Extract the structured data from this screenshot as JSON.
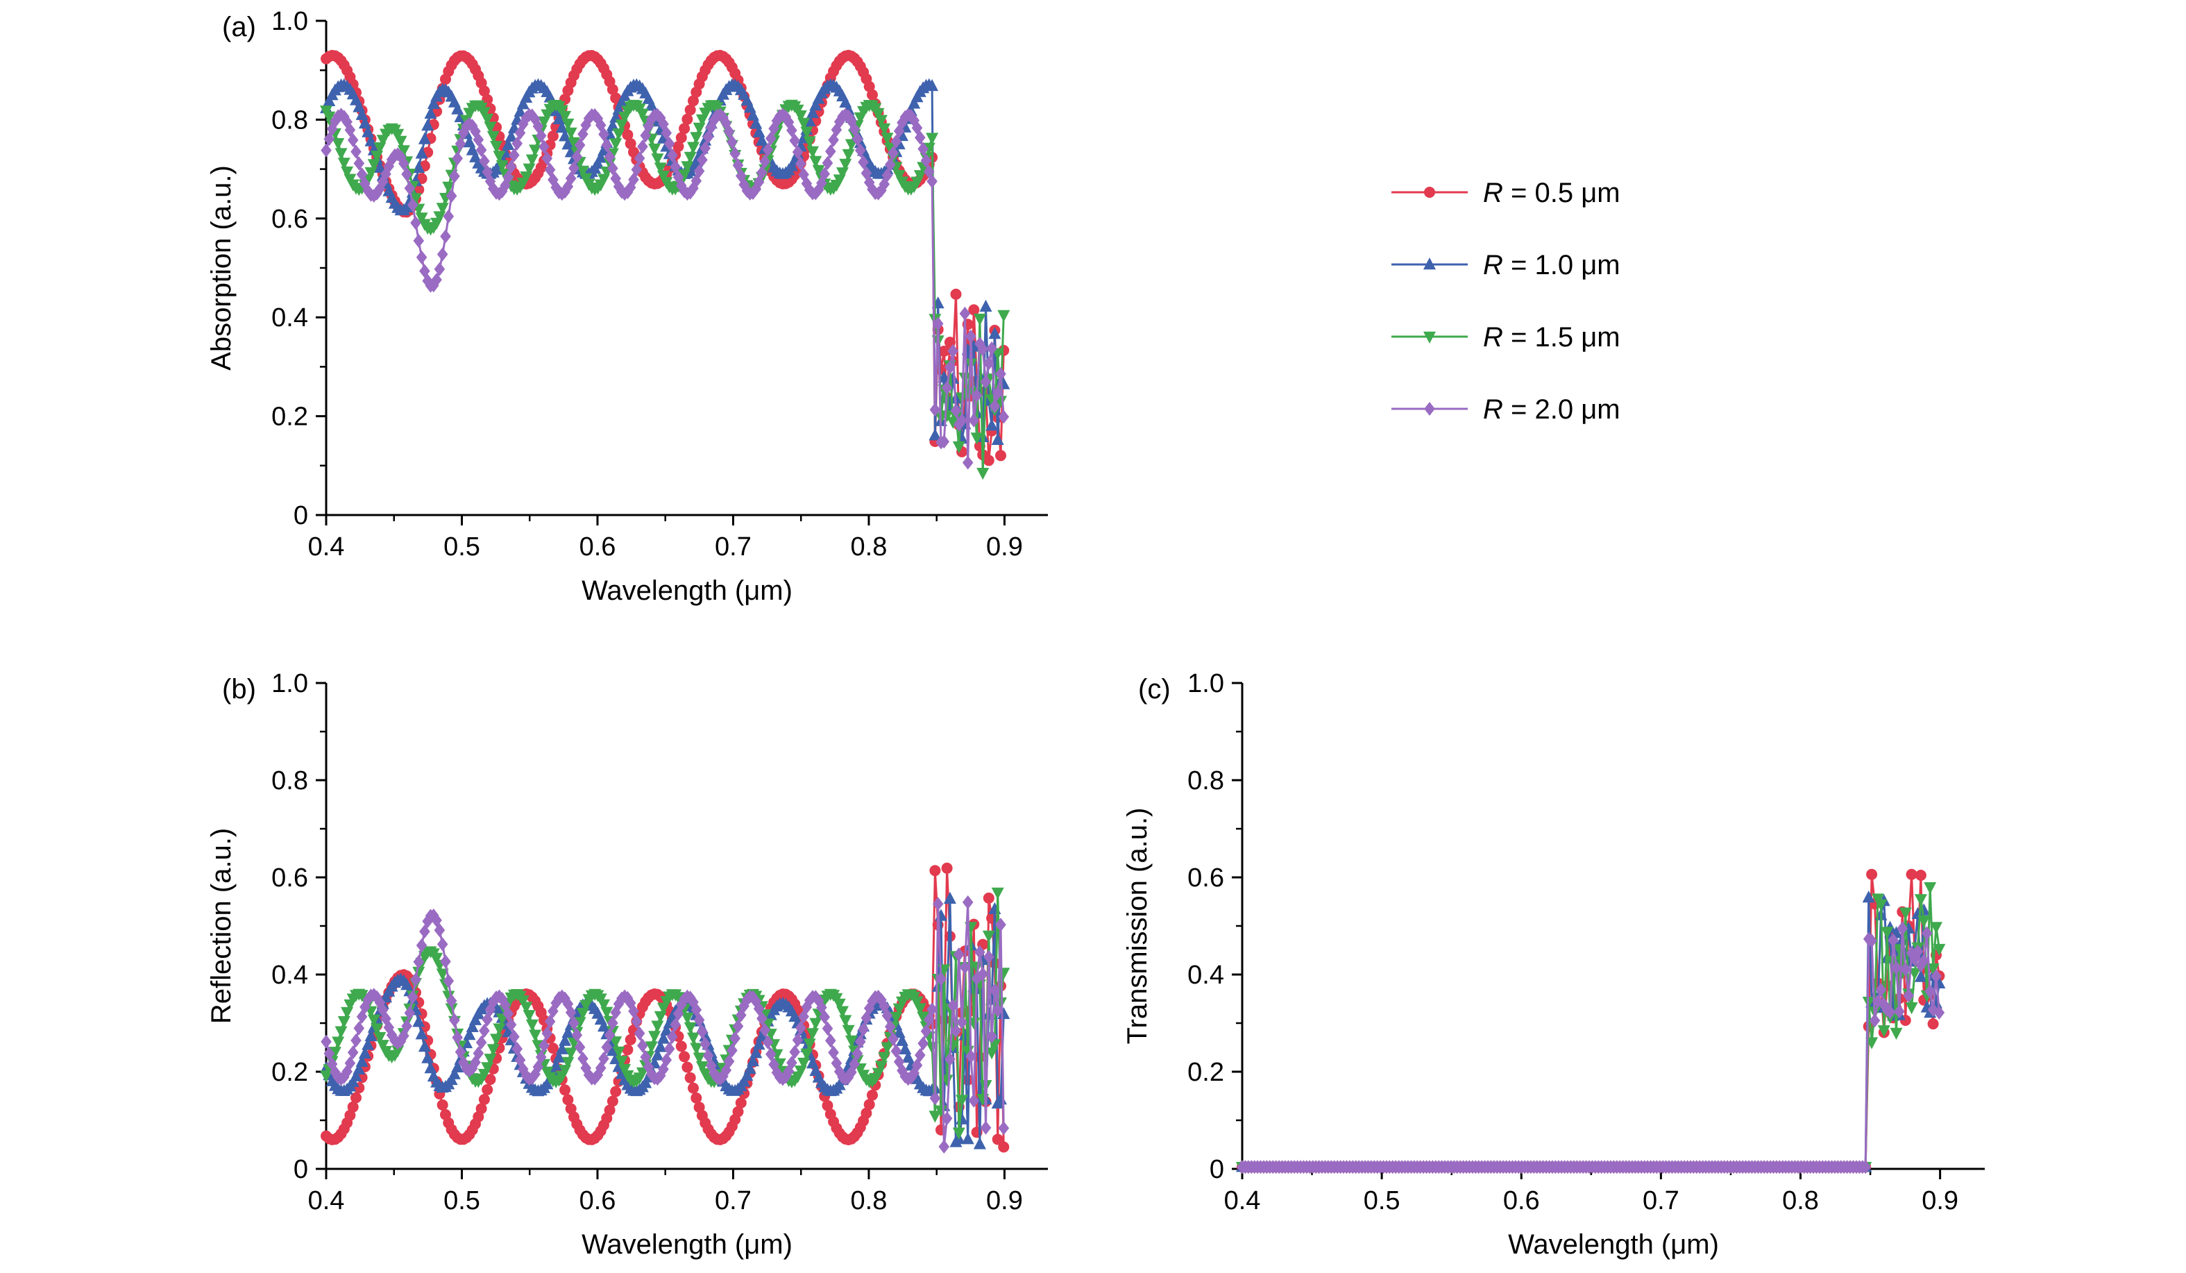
{
  "figure": {
    "background": "#ffffff"
  },
  "legend": {
    "items": [
      {
        "r_symbol": "R",
        "label": " = 0.5 μm",
        "color": "#e23a4e",
        "marker": "circle"
      },
      {
        "r_symbol": "R",
        "label": " = 1.0 μm",
        "color": "#3e62ad",
        "marker": "triangle-up"
      },
      {
        "r_symbol": "R",
        "label": " = 1.5 μm",
        "color": "#3fa94d",
        "marker": "triangle-down"
      },
      {
        "r_symbol": "R",
        "label": " = 2.0 μm",
        "color": "#9a6bc2",
        "marker": "diamond"
      }
    ]
  },
  "chart_data": [
    {
      "id": "a",
      "type": "line",
      "panel_tag": "(a)",
      "xlabel": "Wavelength (μm)",
      "ylabel": "Absorption (a.u.)",
      "xlim": [
        0.4,
        0.932
      ],
      "ylim": [
        0,
        1.0
      ],
      "xticks": [
        0.4,
        0.5,
        0.6,
        0.7,
        0.8,
        0.9
      ],
      "xtick_labels": [
        "0.4",
        "0.5",
        "0.6",
        "0.7",
        "0.8",
        "0.9"
      ],
      "xticks_minor": [
        0.45,
        0.55,
        0.65,
        0.75,
        0.85
      ],
      "yticks": [
        0,
        0.2,
        0.4,
        0.6,
        0.8,
        1.0
      ],
      "ytick_labels": [
        "0",
        "0.2",
        "0.4",
        "0.6",
        "0.8",
        "1.0"
      ],
      "yticks_minor": [
        0.1,
        0.3,
        0.5,
        0.7,
        0.9
      ],
      "description": "Oscillatory absorption 0.6-0.97 from 0.4 to 0.85 um, sharp drop to noisy 0.1-0.46 band from 0.85 to 0.9 um",
      "series": [
        {
          "name": "R = 0.5 μm",
          "color": "#e23a4e",
          "marker": "circle",
          "seed": 101,
          "start": 0.4,
          "end": 0.9,
          "step": 0.0022,
          "cutoff": 0.8485,
          "osc": {
            "base": 0.8,
            "amp": 0.13,
            "period": 0.095,
            "phase": 1.25,
            "dipC": 0.465,
            "dipD": -0.08,
            "dipW": 0.016
          },
          "noise": {
            "min": 0.1,
            "max": 0.46
          }
        },
        {
          "name": "R = 1.0 μm",
          "color": "#3e62ad",
          "marker": "triangle-up",
          "seed": 202,
          "start": 0.4,
          "end": 0.9,
          "step": 0.0022,
          "cutoff": 0.8485,
          "osc": {
            "base": 0.78,
            "amp": 0.09,
            "period": 0.072,
            "phase": 0.5,
            "dipC": 0.462,
            "dipD": -0.11,
            "dipW": 0.015
          },
          "noise": {
            "min": 0.12,
            "max": 0.44
          }
        },
        {
          "name": "R = 1.5 μm",
          "color": "#3fa94d",
          "marker": "triangle-down",
          "seed": 303,
          "start": 0.4,
          "end": 0.9,
          "step": 0.0022,
          "cutoff": 0.8485,
          "osc": {
            "base": 0.745,
            "amp": 0.085,
            "period": 0.058,
            "phase": 2.1,
            "dipC": 0.468,
            "dipD": -0.12,
            "dipW": 0.018
          },
          "noise": {
            "min": 0.08,
            "max": 0.42
          }
        },
        {
          "name": "R = 2.0 μm",
          "color": "#9a6bc2",
          "marker": "diamond",
          "seed": 404,
          "start": 0.4,
          "end": 0.9,
          "step": 0.0022,
          "cutoff": 0.8485,
          "osc": {
            "base": 0.73,
            "amp": 0.08,
            "period": 0.0465,
            "phase": 0.1,
            "dipC": 0.474,
            "dipD": -0.2,
            "dipW": 0.02
          },
          "noise": {
            "min": 0.1,
            "max": 0.42
          }
        }
      ]
    },
    {
      "id": "b",
      "type": "line",
      "panel_tag": "(b)",
      "xlabel": "Wavelength (μm)",
      "ylabel": "Reflection (a.u.)",
      "xlim": [
        0.4,
        0.932
      ],
      "ylim": [
        0,
        1.0
      ],
      "xticks": [
        0.4,
        0.5,
        0.6,
        0.7,
        0.8,
        0.9
      ],
      "xtick_labels": [
        "0.4",
        "0.5",
        "0.6",
        "0.7",
        "0.8",
        "0.9"
      ],
      "xticks_minor": [
        0.45,
        0.55,
        0.65,
        0.75,
        0.85
      ],
      "yticks": [
        0,
        0.2,
        0.4,
        0.6,
        0.8,
        1.0
      ],
      "ytick_labels": [
        "0",
        "0.2",
        "0.4",
        "0.6",
        "0.8",
        "1.0"
      ],
      "yticks_minor": [
        0.1,
        0.3,
        0.5,
        0.7,
        0.9
      ],
      "description": "Oscillatory reflection 0.03-0.52 from 0.4 to 0.85 um, noisy spikes 0-0.65 from 0.85 to 0.9 um",
      "series": [
        {
          "name": "R = 0.5 μm",
          "color": "#e23a4e",
          "marker": "circle",
          "seed": 111,
          "start": 0.4,
          "end": 0.9,
          "step": 0.0022,
          "cutoff": 0.8485,
          "osc": {
            "base": 0.21,
            "amp": 0.15,
            "period": 0.095,
            "phase": 4.39,
            "dipC": 0.465,
            "dipD": 0.06,
            "dipW": 0.016
          },
          "noise": {
            "min": 0.02,
            "max": 0.62
          }
        },
        {
          "name": "R = 1.0 μm",
          "color": "#3e62ad",
          "marker": "triangle-up",
          "seed": 222,
          "start": 0.4,
          "end": 0.9,
          "step": 0.0022,
          "cutoff": 0.8485,
          "osc": {
            "base": 0.25,
            "amp": 0.09,
            "period": 0.072,
            "phase": 3.64,
            "dipC": 0.462,
            "dipD": 0.08,
            "dipW": 0.015
          },
          "noise": {
            "min": 0.05,
            "max": 0.58
          }
        },
        {
          "name": "R = 1.5 μm",
          "color": "#3fa94d",
          "marker": "triangle-down",
          "seed": 333,
          "start": 0.4,
          "end": 0.9,
          "step": 0.0022,
          "cutoff": 0.8485,
          "osc": {
            "base": 0.27,
            "amp": 0.09,
            "period": 0.058,
            "phase": 5.24,
            "dipC": 0.468,
            "dipD": 0.13,
            "dipW": 0.018
          },
          "noise": {
            "min": 0.05,
            "max": 0.62
          }
        },
        {
          "name": "R = 2.0 μm",
          "color": "#9a6bc2",
          "marker": "diamond",
          "seed": 444,
          "start": 0.4,
          "end": 0.9,
          "step": 0.0022,
          "cutoff": 0.8485,
          "osc": {
            "base": 0.27,
            "amp": 0.085,
            "period": 0.0465,
            "phase": 3.24,
            "dipC": 0.474,
            "dipD": 0.18,
            "dipW": 0.02
          },
          "noise": {
            "min": 0.03,
            "max": 0.55
          }
        }
      ]
    },
    {
      "id": "c",
      "type": "line",
      "panel_tag": "(c)",
      "xlabel": "Wavelength (μm)",
      "ylabel": "Transmission (a.u.)",
      "xlim": [
        0.4,
        0.932
      ],
      "ylim": [
        0,
        1.0
      ],
      "xticks": [
        0.4,
        0.5,
        0.6,
        0.7,
        0.8,
        0.9
      ],
      "xtick_labels": [
        "0.4",
        "0.5",
        "0.6",
        "0.7",
        "0.8",
        "0.9"
      ],
      "xticks_minor": [
        0.45,
        0.55,
        0.65,
        0.75,
        0.85
      ],
      "yticks": [
        0,
        0.2,
        0.4,
        0.6,
        0.8,
        1.0
      ],
      "ytick_labels": [
        "0",
        "0.2",
        "0.4",
        "0.6",
        "0.8",
        "1.0"
      ],
      "yticks_minor": [
        0.1,
        0.3,
        0.5,
        0.7,
        0.9
      ],
      "description": "Transmission is zero from 0.4 to 0.85 um, then a noisy cluster 0.26-0.62 from 0.85 to 0.9 um",
      "series": [
        {
          "name": "R = 0.5 μm",
          "color": "#e23a4e",
          "marker": "circle",
          "seed": 121,
          "start": 0.4,
          "end": 0.9,
          "step": 0.0022,
          "cutoff": 0.8485,
          "osc": {
            "base": 0.004,
            "amp": 0.0,
            "period": 1.0,
            "phase": 0.0,
            "dipC": 0.5,
            "dipD": 0.0,
            "dipW": 0.02
          },
          "noise": {
            "min": 0.28,
            "max": 0.62
          }
        },
        {
          "name": "R = 1.0 μm",
          "color": "#3e62ad",
          "marker": "triangle-up",
          "seed": 232,
          "start": 0.4,
          "end": 0.9,
          "step": 0.0022,
          "cutoff": 0.8485,
          "osc": {
            "base": 0.004,
            "amp": 0.0,
            "period": 1.0,
            "phase": 0.0,
            "dipC": 0.5,
            "dipD": 0.0,
            "dipW": 0.02
          },
          "noise": {
            "min": 0.3,
            "max": 0.56
          }
        },
        {
          "name": "R = 1.5 μm",
          "color": "#3fa94d",
          "marker": "triangle-down",
          "seed": 343,
          "start": 0.4,
          "end": 0.9,
          "step": 0.0022,
          "cutoff": 0.8485,
          "osc": {
            "base": 0.004,
            "amp": 0.0,
            "period": 1.0,
            "phase": 0.0,
            "dipC": 0.5,
            "dipD": 0.0,
            "dipW": 0.02
          },
          "noise": {
            "min": 0.26,
            "max": 0.58
          }
        },
        {
          "name": "R = 2.0 μm",
          "color": "#9a6bc2",
          "marker": "diamond",
          "seed": 454,
          "start": 0.4,
          "end": 0.9,
          "step": 0.0022,
          "cutoff": 0.8485,
          "osc": {
            "base": 0.004,
            "amp": 0.0,
            "period": 1.0,
            "phase": 0.0,
            "dipC": 0.5,
            "dipD": 0.0,
            "dipW": 0.02
          },
          "noise": {
            "min": 0.3,
            "max": 0.52
          }
        }
      ]
    }
  ]
}
